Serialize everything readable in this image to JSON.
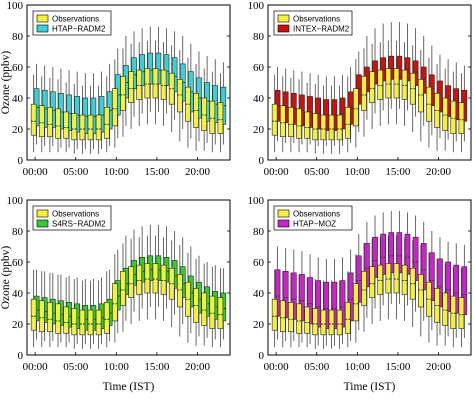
{
  "chart_data": [
    {
      "type": "box",
      "position": "top-left",
      "ylabel": "Ozone (ppbv)",
      "xlabel": "",
      "ylim": [
        0,
        100
      ],
      "yticks": [
        0,
        20,
        40,
        60,
        80,
        100
      ],
      "xticks": [
        "00:00",
        "05:00",
        "10:00",
        "15:00",
        "20:00"
      ],
      "legend": [
        "Observations",
        "HTAP−RADM2"
      ],
      "legend_position": "top-left",
      "grid": false,
      "colors": {
        "observations": "#f5f03c",
        "model": "#3ad0d8"
      },
      "hours": [
        0,
        1,
        2,
        3,
        4,
        5,
        6,
        7,
        8,
        9,
        10,
        11,
        12,
        13,
        14,
        15,
        16,
        17,
        18,
        19,
        20,
        21,
        22,
        23
      ],
      "observations": {
        "median": [
          25,
          24,
          23,
          22,
          21,
          20,
          20,
          20,
          20,
          23,
          33,
          42,
          46,
          48,
          49,
          49,
          48,
          46,
          42,
          36,
          32,
          29,
          27,
          26
        ],
        "q1": [
          16,
          15,
          15,
          14,
          14,
          13,
          13,
          13,
          13,
          14,
          22,
          32,
          37,
          39,
          40,
          40,
          39,
          36,
          31,
          25,
          21,
          19,
          17,
          17
        ],
        "q3": [
          36,
          35,
          34,
          33,
          31,
          30,
          29,
          29,
          29,
          34,
          46,
          54,
          57,
          58,
          59,
          59,
          58,
          56,
          52,
          47,
          43,
          40,
          38,
          37
        ],
        "whisker_low": [
          5,
          5,
          5,
          5,
          5,
          4,
          4,
          4,
          4,
          5,
          8,
          15,
          20,
          22,
          23,
          23,
          22,
          18,
          12,
          8,
          6,
          6,
          5,
          5
        ],
        "whisker_high": [
          55,
          54,
          53,
          52,
          50,
          49,
          48,
          48,
          48,
          54,
          65,
          72,
          75,
          76,
          77,
          77,
          76,
          74,
          71,
          66,
          62,
          59,
          57,
          56
        ]
      },
      "model": {
        "median": [
          34,
          33,
          32,
          31,
          30,
          29,
          28,
          28,
          29,
          32,
          42,
          50,
          55,
          57,
          58,
          58,
          57,
          54,
          50,
          44,
          40,
          38,
          36,
          35
        ],
        "q1": [
          22,
          21,
          21,
          20,
          19,
          18,
          17,
          17,
          18,
          20,
          29,
          40,
          46,
          48,
          49,
          49,
          48,
          44,
          38,
          31,
          27,
          25,
          24,
          23
        ],
        "q3": [
          46,
          45,
          44,
          43,
          42,
          41,
          40,
          40,
          41,
          44,
          55,
          61,
          66,
          68,
          69,
          69,
          68,
          66,
          62,
          57,
          53,
          50,
          48,
          47
        ],
        "whisker_low": [
          10,
          9,
          9,
          8,
          8,
          7,
          7,
          7,
          7,
          9,
          14,
          22,
          28,
          30,
          31,
          31,
          30,
          26,
          20,
          14,
          12,
          11,
          10,
          10
        ],
        "whisker_high": [
          62,
          61,
          60,
          59,
          58,
          57,
          56,
          56,
          57,
          62,
          72,
          80,
          83,
          85,
          86,
          86,
          85,
          83,
          80,
          75,
          70,
          67,
          65,
          63
        ]
      }
    },
    {
      "type": "box",
      "position": "top-right",
      "ylabel": "",
      "xlabel": "",
      "ylim": [
        0,
        100
      ],
      "yticks": [
        0,
        20,
        40,
        60,
        80,
        100
      ],
      "xticks": [
        "00:00",
        "05:00",
        "10:00",
        "15:00",
        "20:00"
      ],
      "legend": [
        "Observations",
        "INTEX−RADM2"
      ],
      "legend_position": "top-left",
      "grid": false,
      "colors": {
        "observations": "#f5f03c",
        "model": "#cc1111"
      },
      "hours": [
        0,
        1,
        2,
        3,
        4,
        5,
        6,
        7,
        8,
        9,
        10,
        11,
        12,
        13,
        14,
        15,
        16,
        17,
        18,
        19,
        20,
        21,
        22,
        23
      ],
      "observations": {
        "median": [
          25,
          24,
          23,
          22,
          21,
          20,
          20,
          20,
          20,
          23,
          33,
          42,
          46,
          48,
          49,
          49,
          48,
          46,
          42,
          36,
          32,
          29,
          27,
          26
        ],
        "q1": [
          16,
          15,
          15,
          14,
          14,
          13,
          13,
          13,
          13,
          14,
          22,
          32,
          37,
          39,
          40,
          40,
          39,
          36,
          31,
          25,
          21,
          19,
          17,
          17
        ],
        "q3": [
          36,
          35,
          34,
          33,
          31,
          30,
          29,
          29,
          29,
          34,
          46,
          54,
          57,
          58,
          59,
          59,
          58,
          56,
          52,
          47,
          43,
          40,
          38,
          37
        ],
        "whisker_low": [
          5,
          5,
          5,
          5,
          5,
          4,
          4,
          4,
          4,
          5,
          8,
          15,
          20,
          22,
          23,
          23,
          22,
          18,
          12,
          8,
          6,
          6,
          5,
          5
        ],
        "whisker_high": [
          55,
          54,
          53,
          52,
          50,
          49,
          48,
          48,
          48,
          54,
          65,
          72,
          75,
          76,
          77,
          77,
          76,
          74,
          71,
          66,
          62,
          59,
          57,
          56
        ]
      },
      "model": {
        "median": [
          35,
          34,
          33,
          32,
          31,
          30,
          29,
          29,
          30,
          34,
          46,
          52,
          56,
          58,
          59,
          60,
          59,
          57,
          52,
          46,
          42,
          39,
          37,
          36
        ],
        "q1": [
          25,
          24,
          23,
          22,
          21,
          20,
          19,
          19,
          20,
          23,
          36,
          44,
          49,
          51,
          52,
          52,
          51,
          48,
          43,
          35,
          31,
          28,
          26,
          25
        ],
        "q3": [
          45,
          44,
          43,
          42,
          41,
          40,
          39,
          39,
          40,
          44,
          55,
          60,
          64,
          66,
          67,
          67,
          66,
          64,
          60,
          55,
          51,
          48,
          46,
          45
        ],
        "whisker_low": [
          12,
          11,
          11,
          10,
          10,
          9,
          9,
          9,
          9,
          11,
          18,
          26,
          30,
          32,
          33,
          33,
          32,
          28,
          22,
          16,
          14,
          13,
          12,
          12
        ],
        "whisker_high": [
          60,
          59,
          58,
          57,
          56,
          55,
          54,
          54,
          55,
          60,
          70,
          80,
          85,
          88,
          89,
          89,
          88,
          85,
          80,
          74,
          68,
          65,
          63,
          61
        ]
      }
    },
    {
      "type": "box",
      "position": "bottom-left",
      "ylabel": "Ozone (ppbv)",
      "xlabel": "Time (IST)",
      "ylim": [
        0,
        100
      ],
      "yticks": [
        0,
        20,
        40,
        60,
        80,
        100
      ],
      "xticks": [
        "00:00",
        "05:00",
        "10:00",
        "15:00",
        "20:00"
      ],
      "legend": [
        "Observations",
        "S4RS−RADM2"
      ],
      "legend_position": "top-left",
      "grid": false,
      "colors": {
        "observations": "#f5f03c",
        "model": "#33cc33"
      },
      "hours": [
        0,
        1,
        2,
        3,
        4,
        5,
        6,
        7,
        8,
        9,
        10,
        11,
        12,
        13,
        14,
        15,
        16,
        17,
        18,
        19,
        20,
        21,
        22,
        23
      ],
      "observations": {
        "median": [
          25,
          24,
          23,
          22,
          21,
          20,
          20,
          20,
          20,
          23,
          33,
          42,
          46,
          48,
          49,
          49,
          48,
          46,
          42,
          36,
          32,
          29,
          27,
          26
        ],
        "q1": [
          16,
          15,
          15,
          14,
          14,
          13,
          13,
          13,
          13,
          14,
          22,
          32,
          37,
          39,
          40,
          40,
          39,
          36,
          31,
          25,
          21,
          19,
          17,
          17
        ],
        "q3": [
          36,
          35,
          34,
          33,
          31,
          30,
          29,
          29,
          29,
          34,
          46,
          54,
          57,
          58,
          59,
          59,
          58,
          56,
          52,
          47,
          43,
          40,
          38,
          37
        ],
        "whisker_low": [
          5,
          5,
          5,
          5,
          5,
          4,
          4,
          4,
          4,
          5,
          8,
          15,
          20,
          22,
          23,
          23,
          22,
          18,
          12,
          8,
          6,
          6,
          5,
          5
        ],
        "whisker_high": [
          55,
          54,
          53,
          52,
          50,
          49,
          48,
          48,
          48,
          54,
          65,
          72,
          75,
          76,
          77,
          77,
          76,
          74,
          71,
          66,
          62,
          59,
          57,
          56
        ]
      },
      "model": {
        "median": [
          29,
          28,
          27,
          26,
          25,
          24,
          23,
          23,
          24,
          27,
          38,
          46,
          52,
          54,
          55,
          55,
          54,
          51,
          46,
          40,
          36,
          33,
          31,
          30
        ],
        "q1": [
          22,
          21,
          20,
          19,
          18,
          17,
          16,
          16,
          17,
          19,
          29,
          39,
          45,
          47,
          48,
          48,
          47,
          43,
          37,
          31,
          27,
          25,
          23,
          22
        ],
        "q3": [
          38,
          37,
          36,
          35,
          34,
          33,
          32,
          32,
          33,
          36,
          48,
          56,
          61,
          63,
          64,
          64,
          63,
          61,
          57,
          51,
          47,
          44,
          41,
          40
        ],
        "whisker_low": [
          10,
          9,
          9,
          8,
          8,
          7,
          7,
          7,
          7,
          9,
          14,
          22,
          28,
          30,
          31,
          31,
          30,
          26,
          20,
          14,
          12,
          11,
          10,
          10
        ],
        "whisker_high": [
          55,
          54,
          53,
          52,
          51,
          50,
          49,
          49,
          50,
          55,
          68,
          77,
          81,
          83,
          84,
          84,
          83,
          80,
          76,
          70,
          64,
          60,
          58,
          56
        ]
      }
    },
    {
      "type": "box",
      "position": "bottom-right",
      "ylabel": "",
      "xlabel": "Time (IST)",
      "ylim": [
        0,
        100
      ],
      "yticks": [
        0,
        20,
        40,
        60,
        80,
        100
      ],
      "xticks": [
        "00:00",
        "05:00",
        "10:00",
        "15:00",
        "20:00"
      ],
      "legend": [
        "Observations",
        "HTAP−MOZ"
      ],
      "legend_position": "top-left",
      "grid": false,
      "colors": {
        "observations": "#f5f03c",
        "model": "#cc22cc"
      },
      "hours": [
        0,
        1,
        2,
        3,
        4,
        5,
        6,
        7,
        8,
        9,
        10,
        11,
        12,
        13,
        14,
        15,
        16,
        17,
        18,
        19,
        20,
        21,
        22,
        23
      ],
      "observations": {
        "median": [
          25,
          24,
          23,
          22,
          21,
          20,
          20,
          20,
          20,
          23,
          33,
          42,
          46,
          48,
          49,
          49,
          48,
          46,
          42,
          36,
          32,
          29,
          27,
          26
        ],
        "q1": [
          16,
          15,
          15,
          14,
          14,
          13,
          13,
          13,
          13,
          14,
          22,
          32,
          37,
          39,
          40,
          40,
          39,
          36,
          31,
          25,
          21,
          19,
          17,
          17
        ],
        "q3": [
          36,
          35,
          34,
          33,
          31,
          30,
          29,
          29,
          29,
          34,
          46,
          54,
          57,
          58,
          59,
          59,
          58,
          56,
          52,
          47,
          43,
          40,
          38,
          37
        ],
        "whisker_low": [
          5,
          5,
          5,
          5,
          5,
          4,
          4,
          4,
          4,
          5,
          8,
          15,
          20,
          22,
          23,
          23,
          22,
          18,
          12,
          8,
          6,
          6,
          5,
          5
        ],
        "whisker_high": [
          55,
          54,
          53,
          52,
          50,
          49,
          48,
          48,
          48,
          54,
          65,
          72,
          75,
          76,
          77,
          77,
          76,
          74,
          71,
          66,
          62,
          59,
          57,
          56
        ]
      },
      "model": {
        "median": [
          38,
          37,
          36,
          35,
          33,
          31,
          30,
          30,
          31,
          36,
          48,
          56,
          61,
          63,
          64,
          64,
          63,
          60,
          55,
          48,
          44,
          42,
          40,
          39
        ],
        "q1": [
          25,
          24,
          23,
          22,
          20,
          18,
          17,
          17,
          18,
          22,
          34,
          44,
          50,
          52,
          53,
          53,
          52,
          48,
          42,
          35,
          31,
          28,
          27,
          26
        ],
        "q3": [
          55,
          54,
          53,
          52,
          50,
          48,
          47,
          47,
          48,
          53,
          64,
          72,
          76,
          78,
          79,
          79,
          78,
          76,
          72,
          66,
          62,
          60,
          58,
          57
        ],
        "whisker_low": [
          10,
          9,
          9,
          8,
          7,
          6,
          6,
          6,
          7,
          9,
          16,
          24,
          30,
          32,
          33,
          33,
          32,
          28,
          22,
          16,
          13,
          12,
          11,
          11
        ],
        "whisker_high": [
          70,
          69,
          68,
          67,
          65,
          63,
          62,
          62,
          63,
          68,
          78,
          86,
          90,
          92,
          93,
          93,
          92,
          90,
          86,
          80,
          76,
          73,
          72,
          71
        ]
      }
    }
  ]
}
